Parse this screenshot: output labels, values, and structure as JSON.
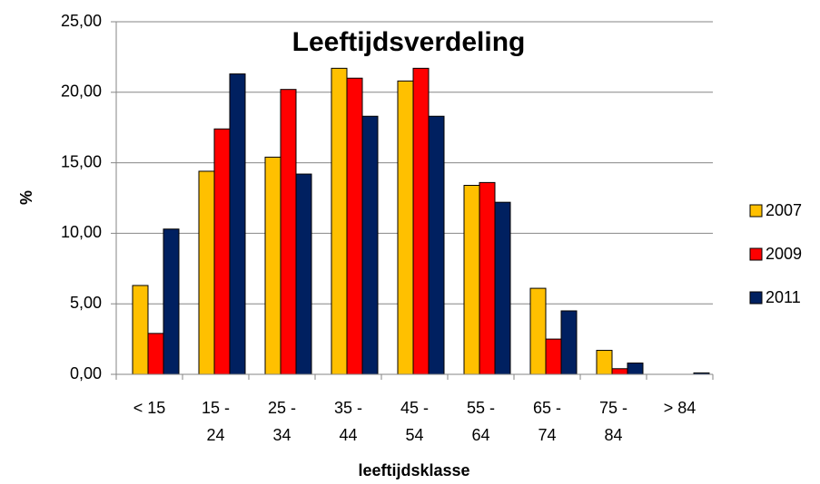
{
  "chart_data": {
    "type": "bar",
    "title": "Leeftijdsverdeling",
    "ylabel": "%",
    "xlabel": "leeftijdsklasse",
    "categories": [
      "< 15",
      "15 - 24",
      "25 - 34",
      "35 - 44",
      "45 - 54",
      "55 - 64",
      "65 - 74",
      "75 - 84",
      "> 84"
    ],
    "series": [
      {
        "name": "2007",
        "color": "#ffc000",
        "values": [
          6.3,
          14.4,
          15.4,
          21.7,
          20.8,
          13.4,
          6.1,
          1.7,
          0.0
        ]
      },
      {
        "name": "2009",
        "color": "#ff0000",
        "values": [
          2.9,
          17.4,
          20.2,
          21.0,
          21.7,
          13.6,
          2.5,
          0.4,
          0.0
        ]
      },
      {
        "name": "2011",
        "color": "#002060",
        "values": [
          10.3,
          21.3,
          14.2,
          18.3,
          18.3,
          12.2,
          4.5,
          0.8,
          0.1
        ]
      }
    ],
    "ylim": [
      0,
      25
    ],
    "yticks": [
      {
        "value": 0,
        "label": "0,00"
      },
      {
        "value": 5,
        "label": "5,00"
      },
      {
        "value": 10,
        "label": "10,00"
      },
      {
        "value": 15,
        "label": "15,00"
      },
      {
        "value": 20,
        "label": "20,00"
      },
      {
        "value": 25,
        "label": "25,00"
      }
    ],
    "grid": true,
    "legend": "right"
  }
}
